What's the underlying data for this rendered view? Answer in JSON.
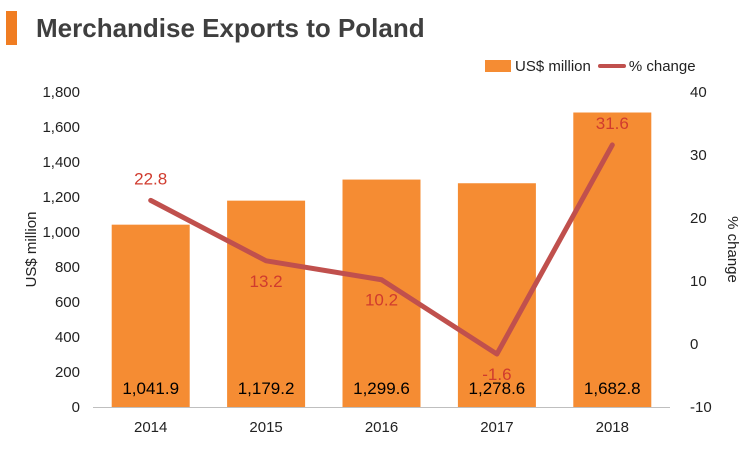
{
  "header": {
    "title": "Merchandise Exports to Poland"
  },
  "colors": {
    "accent": "#f07d22",
    "bar": "#f58c33",
    "line": "#c0504d",
    "line_label": "#d03b2e",
    "text": "#3f3f3f"
  },
  "chart_data": {
    "type": "bar",
    "title": "Merchandise Exports to Poland",
    "categories": [
      "2014",
      "2015",
      "2016",
      "2017",
      "2018"
    ],
    "series": [
      {
        "name": "US$ million",
        "type": "bar",
        "axis": "left",
        "values": [
          1041.9,
          1179.2,
          1299.6,
          1278.6,
          1682.8
        ],
        "labels": [
          "1,041.9",
          "1,179.2",
          "1,299.6",
          "1,278.6",
          "1,682.8"
        ]
      },
      {
        "name": "% change",
        "type": "line",
        "axis": "right",
        "values": [
          22.8,
          13.2,
          10.2,
          -1.6,
          31.6
        ],
        "labels": [
          "22.8",
          "13.2",
          "10.2",
          "-1.6",
          "31.6"
        ]
      }
    ],
    "ylabel": "US$ million",
    "y2label": "% change",
    "ylim": [
      0,
      1800
    ],
    "y2lim": [
      -10,
      40
    ],
    "yticks": [
      "0",
      "200",
      "400",
      "600",
      "800",
      "1,000",
      "1,200",
      "1,400",
      "1,600",
      "1,800"
    ],
    "y2ticks": [
      "-10",
      "0",
      "10",
      "20",
      "30",
      "40"
    ],
    "legend": "top-right",
    "grid": false
  }
}
